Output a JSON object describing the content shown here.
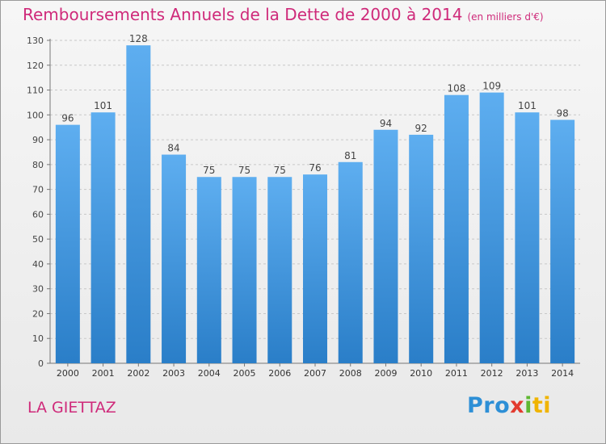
{
  "header": {
    "title": "Remboursements Annuels de la Dette de 2000 à 2014",
    "unit": "(en milliers d'€)"
  },
  "footer": {
    "town": "LA GIETTAZ",
    "logo_parts": [
      "Pro",
      "x",
      "i",
      "ti"
    ]
  },
  "colors": {
    "bar_top": "#5eaef0",
    "bar_bottom": "#2a7ec8",
    "title": "#cf2a7a",
    "grid": "#c8c8c8"
  },
  "chart_data": {
    "type": "bar",
    "title": "Remboursements Annuels de la Dette de 2000 à 2014",
    "xlabel": "",
    "ylabel": "",
    "categories": [
      "2000",
      "2001",
      "2002",
      "2003",
      "2004",
      "2005",
      "2006",
      "2007",
      "2008",
      "2009",
      "2010",
      "2011",
      "2012",
      "2013",
      "2014"
    ],
    "values": [
      96,
      101,
      128,
      84,
      75,
      75,
      75,
      76,
      81,
      94,
      92,
      108,
      109,
      101,
      98
    ],
    "ylim": [
      0,
      130
    ],
    "yticks": [
      0,
      10,
      20,
      30,
      40,
      50,
      60,
      70,
      80,
      90,
      100,
      110,
      120,
      130
    ],
    "grid": true,
    "data_labels": true
  }
}
